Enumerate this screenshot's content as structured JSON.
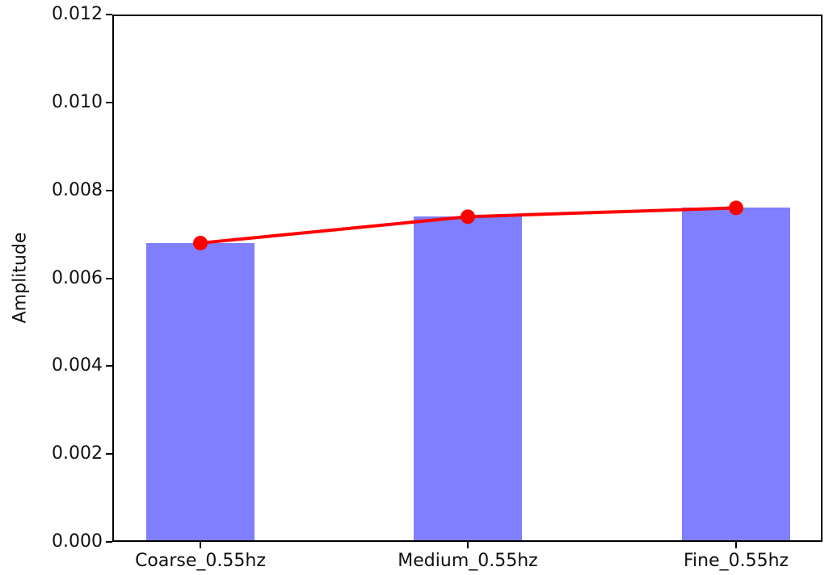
{
  "chart_data": {
    "type": "bar",
    "categories": [
      "Coarse_0.55hz",
      "Medium_0.55hz",
      "Fine_0.55hz"
    ],
    "series": [
      {
        "name": "amplitude-bars",
        "type": "bar",
        "values": [
          0.0068,
          0.0074,
          0.0076
        ],
        "color": "#7f7fff"
      },
      {
        "name": "amplitude-line",
        "type": "line",
        "values": [
          0.0068,
          0.0074,
          0.0076
        ],
        "color": "#ff0000",
        "marker": "circle"
      }
    ],
    "title": "",
    "xlabel": "",
    "ylabel": "Amplitude",
    "ylim": [
      0,
      0.012
    ],
    "yticks": [
      0,
      0.002,
      0.004,
      0.006,
      0.008,
      0.01,
      0.012
    ],
    "ytick_labels": [
      "0.000",
      "0.002",
      "0.004",
      "0.006",
      "0.008",
      "0.010",
      "0.012"
    ],
    "grid": false,
    "legend": "none",
    "colors": {
      "bar_fill": "#7f7fff",
      "line": "#ff0000",
      "spine": "#000000",
      "text": "#111111",
      "background": "#ffffff"
    }
  }
}
